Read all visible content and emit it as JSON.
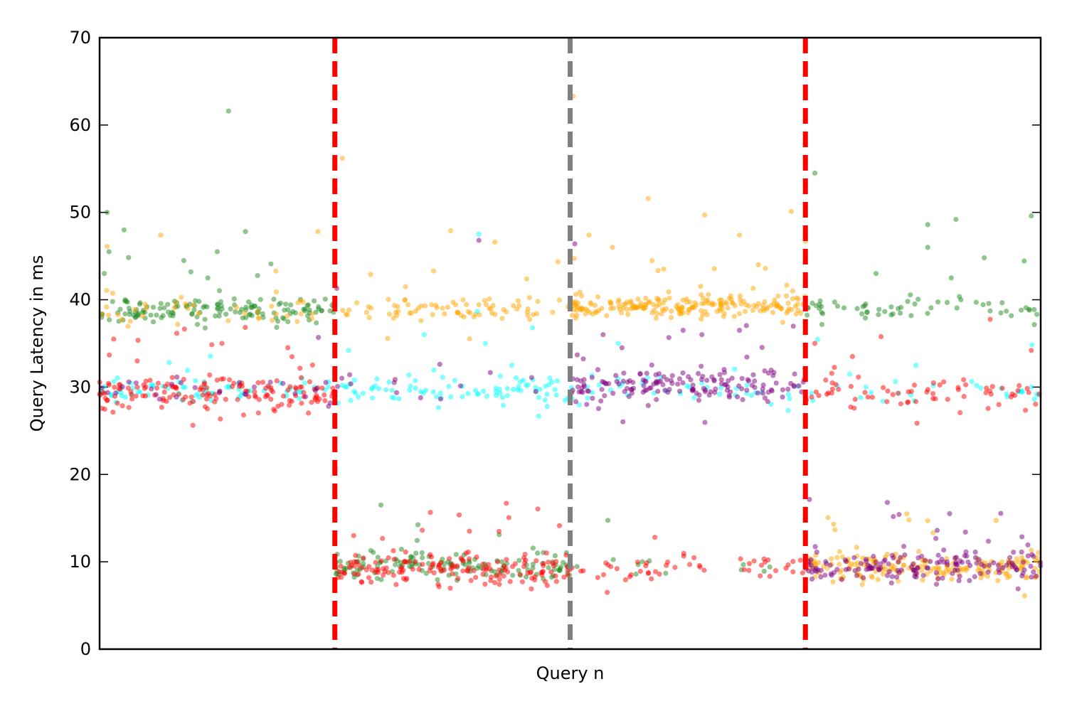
{
  "chart_data": {
    "type": "scatter",
    "title": "",
    "xlabel": "Query n",
    "ylabel": "Query Latency in ms",
    "xlim": [
      0,
      1000
    ],
    "ylim": [
      0,
      70
    ],
    "yticks": [
      "0",
      "10",
      "20",
      "30",
      "40",
      "50",
      "60",
      "70"
    ],
    "xticks": [],
    "grid": false,
    "legend": "none",
    "colors": {
      "green": "#228B22",
      "orange": "#FFA500",
      "cyan": "#00FFFF",
      "red": "#FF0000",
      "purple": "#800080",
      "gray": "#808080"
    },
    "vlines": [
      {
        "x": 250,
        "color": "#FF0000",
        "style": "dashed"
      },
      {
        "x": 500,
        "color": "#808080",
        "style": "dashed"
      },
      {
        "x": 750,
        "color": "#FF0000",
        "style": "dashed"
      }
    ],
    "series": [
      {
        "color": "#228B22",
        "segments": [
          {
            "x": [
              0,
              250
            ],
            "center": 38.8,
            "spread": 1.1,
            "n": 150
          },
          {
            "x": [
              250,
              500
            ],
            "center": 9.5,
            "spread": 1.4,
            "n": 140
          },
          {
            "x": [
              500,
              750
            ],
            "center": 9.6,
            "spread": 1.0,
            "n": 12
          },
          {
            "x": [
              750,
              1000
            ],
            "center": 39.0,
            "spread": 1.2,
            "n": 60
          }
        ],
        "outliers": [
          [
            137,
            61.6
          ],
          [
            8,
            50.0
          ],
          [
            26,
            48.0
          ],
          [
            10,
            45.5
          ],
          [
            5,
            43.0
          ],
          [
            125,
            45.5
          ],
          [
            97,
            43.2
          ],
          [
            115,
            42.5
          ],
          [
            155,
            47.8
          ],
          [
            880,
            48.6
          ],
          [
            910,
            49.2
          ],
          [
            990,
            49.6
          ],
          [
            760,
            54.5
          ],
          [
            940,
            44.8
          ],
          [
            880,
            46.0
          ],
          [
            905,
            42.5
          ],
          [
            825,
            43.0
          ]
        ]
      },
      {
        "color": "#FFA500",
        "segments": [
          {
            "x": [
              0,
              250
            ],
            "center": 38.8,
            "spread": 1.0,
            "n": 40
          },
          {
            "x": [
              250,
              500
            ],
            "center": 39.0,
            "spread": 1.2,
            "n": 80
          },
          {
            "x": [
              500,
              750
            ],
            "center": 39.2,
            "spread": 1.0,
            "n": 220
          },
          {
            "x": [
              750,
              1000
            ],
            "center": 9.4,
            "spread": 1.3,
            "n": 200
          }
        ],
        "outliers": [
          [
            258,
            56.2
          ],
          [
            503,
            63.3
          ],
          [
            583,
            51.6
          ],
          [
            8,
            46.1
          ],
          [
            65,
            47.4
          ],
          [
            232,
            47.8
          ],
          [
            373,
            47.9
          ],
          [
            643,
            49.7
          ],
          [
            735,
            50.1
          ],
          [
            520,
            47.4
          ],
          [
            545,
            46.0
          ],
          [
            680,
            47.4
          ],
          [
            700,
            44.0
          ],
          [
            750,
            46.7
          ],
          [
            420,
            46.6
          ],
          [
            288,
            42.9
          ],
          [
            325,
            41.5
          ],
          [
            860,
            14.8
          ],
          [
            880,
            14.7
          ],
          [
            780,
            14.3
          ]
        ]
      },
      {
        "color": "#00FFFF",
        "segments": [
          {
            "x": [
              0,
              250
            ],
            "center": 29.6,
            "spread": 1.3,
            "n": 70
          },
          {
            "x": [
              250,
              500
            ],
            "center": 29.8,
            "spread": 1.6,
            "n": 90
          },
          {
            "x": [
              500,
              750
            ],
            "center": 29.8,
            "spread": 1.5,
            "n": 40
          },
          {
            "x": [
              750,
              1000
            ],
            "center": 29.6,
            "spread": 1.3,
            "n": 30
          }
        ],
        "outliers": [
          [
            403,
            47.5
          ],
          [
            438,
            32.5
          ],
          [
            460,
            36.8
          ],
          [
            345,
            36.0
          ],
          [
            410,
            35.0
          ]
        ]
      },
      {
        "color": "#FF0000",
        "segments": [
          {
            "x": [
              0,
              250
            ],
            "center": 29.3,
            "spread": 1.5,
            "n": 160
          },
          {
            "x": [
              250,
              500
            ],
            "center": 9.2,
            "spread": 1.6,
            "n": 170
          },
          {
            "x": [
              500,
              750
            ],
            "center": 9.3,
            "spread": 1.2,
            "n": 50
          },
          {
            "x": [
              750,
              1000
            ],
            "center": 29.5,
            "spread": 1.8,
            "n": 70
          }
        ],
        "outliers": [
          [
            15,
            35.5
          ],
          [
            40,
            33.0
          ],
          [
            130,
            35.0
          ],
          [
            200,
            34.5
          ],
          [
            760,
            35.0
          ],
          [
            800,
            33.5
          ],
          [
            990,
            34.2
          ],
          [
            270,
            13.0
          ],
          [
            393,
            13.5
          ],
          [
            590,
            12.8
          ]
        ]
      },
      {
        "color": "#800080",
        "segments": [
          {
            "x": [
              0,
              250
            ],
            "center": 29.8,
            "spread": 1.3,
            "n": 30
          },
          {
            "x": [
              250,
              500
            ],
            "center": 30.0,
            "spread": 2.0,
            "n": 14
          },
          {
            "x": [
              500,
              750
            ],
            "center": 30.3,
            "spread": 1.5,
            "n": 170
          },
          {
            "x": [
              750,
              1000
            ],
            "center": 9.4,
            "spread": 1.4,
            "n": 170
          }
        ],
        "outliers": [
          [
            505,
            46.4
          ],
          [
            403,
            46.8
          ],
          [
            252,
            41.3
          ],
          [
            620,
            36.5
          ],
          [
            640,
            36.0
          ],
          [
            535,
            36.0
          ],
          [
            555,
            34.5
          ],
          [
            680,
            36.5
          ],
          [
            890,
            13.6
          ],
          [
            920,
            13.4
          ]
        ]
      }
    ]
  }
}
